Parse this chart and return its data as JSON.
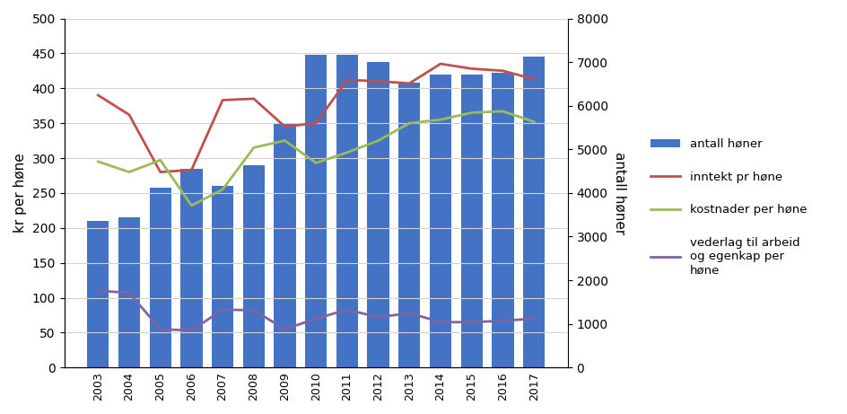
{
  "years": [
    2003,
    2004,
    2005,
    2006,
    2007,
    2008,
    2009,
    2010,
    2011,
    2012,
    2013,
    2014,
    2015,
    2016,
    2017
  ],
  "antall_honer": [
    3360,
    3440,
    4112,
    4560,
    4160,
    4640,
    5600,
    7168,
    7168,
    6992,
    6528,
    6720,
    6720,
    6752,
    7120
  ],
  "inntekt_pr_hone": [
    390,
    362,
    280,
    283,
    383,
    385,
    345,
    350,
    412,
    410,
    407,
    435,
    428,
    425,
    413
  ],
  "kostnader_per_hone": [
    295,
    280,
    297,
    232,
    255,
    315,
    325,
    293,
    308,
    325,
    350,
    355,
    365,
    367,
    352
  ],
  "vederlag_til_arbeid": [
    110,
    107,
    55,
    53,
    83,
    82,
    55,
    70,
    83,
    72,
    78,
    65,
    65,
    67,
    70
  ],
  "bar_color": "#4472C4",
  "inntekt_color": "#C0504D",
  "kostnader_color": "#9BBB59",
  "vederlag_color": "#8064A2",
  "ylabel_left": "kr per høne",
  "ylabel_right": "antall høner",
  "ylim_left": [
    0,
    500
  ],
  "ylim_right": [
    0,
    8000
  ],
  "yticks_left": [
    0,
    50,
    100,
    150,
    200,
    250,
    300,
    350,
    400,
    450,
    500
  ],
  "yticks_right": [
    0,
    1000,
    2000,
    3000,
    4000,
    5000,
    6000,
    7000,
    8000
  ],
  "legend_antall": "antall høner",
  "legend_inntekt": "inntekt pr høne",
  "legend_kostnader": "kostnader per høne",
  "legend_vederlag": "vederlag til arbeid\nog egenkap per\nhøne",
  "bar_width": 0.7
}
